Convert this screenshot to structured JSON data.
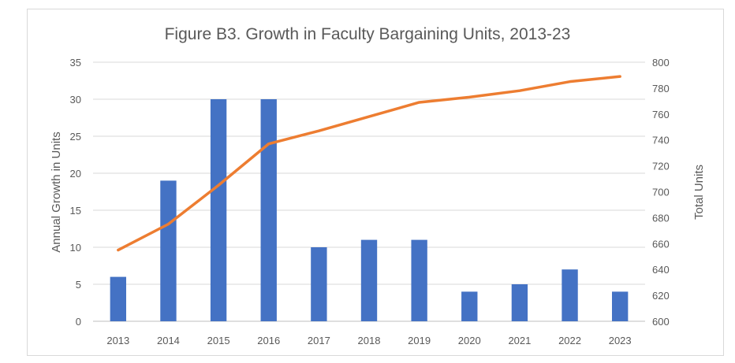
{
  "chart_data": {
    "type": "bar",
    "title": "Figure B3. Growth in Faculty Bargaining Units, 2013-23",
    "categories": [
      "2013",
      "2014",
      "2015",
      "2016",
      "2017",
      "2018",
      "2019",
      "2020",
      "2021",
      "2022",
      "2023"
    ],
    "series": [
      {
        "name": "Annual Growth in Units",
        "type": "bar",
        "axis": "left",
        "color": "#4472c4",
        "values": [
          6,
          19,
          30,
          30,
          10,
          11,
          11,
          4,
          5,
          7,
          4
        ]
      },
      {
        "name": "Total Units",
        "type": "line",
        "axis": "right",
        "color": "#ed7d31",
        "values": [
          655,
          675,
          705,
          737,
          747,
          758,
          769,
          773,
          778,
          785,
          789
        ]
      }
    ],
    "ylabel": "Annual Growth in Units",
    "y2label": "Total Units",
    "ylim": [
      0,
      35
    ],
    "y2lim": [
      600,
      800
    ],
    "yticks": [
      0,
      5,
      10,
      15,
      20,
      25,
      30,
      35
    ],
    "y2ticks": [
      600,
      620,
      640,
      660,
      680,
      700,
      720,
      740,
      760,
      780,
      800
    ],
    "grid": true,
    "legend": "none"
  }
}
